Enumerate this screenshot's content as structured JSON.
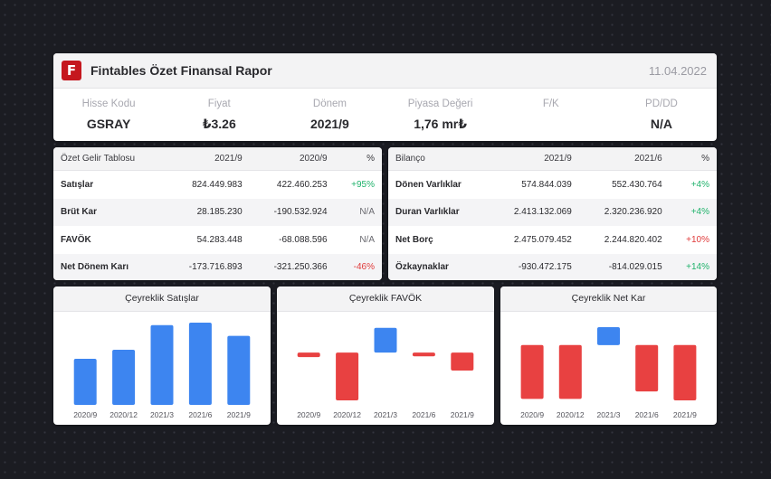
{
  "header": {
    "logo_letter": "F",
    "title": "Fintables Özet Finansal Rapor",
    "date": "11.04.2022",
    "metrics": [
      {
        "label": "Hisse Kodu",
        "value": "GSRAY"
      },
      {
        "label": "Fiyat",
        "value": "₺3.26"
      },
      {
        "label": "Dönem",
        "value": "2021/9"
      },
      {
        "label": "Piyasa Değeri",
        "value": "1,76 mr₺"
      },
      {
        "label": "F/K",
        "value": ""
      },
      {
        "label": "PD/DD",
        "value": "N/A"
      }
    ]
  },
  "income": {
    "headers": [
      "Özet Gelir Tablosu",
      "2021/9",
      "2020/9",
      "%"
    ],
    "rows": [
      {
        "name": "Satışlar",
        "a": "824.449.983",
        "b": "422.460.253",
        "pct": "+95%",
        "tone": "pos"
      },
      {
        "name": "Brüt Kar",
        "a": "28.185.230",
        "b": "-190.532.924",
        "pct": "N/A",
        "tone": "na"
      },
      {
        "name": "FAVÖK",
        "a": "54.283.448",
        "b": "-68.088.596",
        "pct": "N/A",
        "tone": "na"
      },
      {
        "name": "Net Dönem Karı",
        "a": "-173.716.893",
        "b": "-321.250.366",
        "pct": "-46%",
        "tone": "neg"
      }
    ]
  },
  "balance": {
    "headers": [
      "Bilanço",
      "2021/9",
      "2021/6",
      "%"
    ],
    "rows": [
      {
        "name": "Dönen Varlıklar",
        "a": "574.844.039",
        "b": "552.430.764",
        "pct": "+4%",
        "tone": "pos"
      },
      {
        "name": "Duran Varlıklar",
        "a": "2.413.132.069",
        "b": "2.320.236.920",
        "pct": "+4%",
        "tone": "pos"
      },
      {
        "name": "Net Borç",
        "a": "2.475.079.452",
        "b": "2.244.820.402",
        "pct": "+10%",
        "tone": "neg"
      },
      {
        "name": "Özkaynaklar",
        "a": "-930.472.175",
        "b": "-814.029.015",
        "pct": "+14%",
        "tone": "pos"
      }
    ]
  },
  "chart_data": [
    {
      "type": "bar",
      "title": "Çeyreklik Satışlar",
      "categories": [
        "2020/9",
        "2020/12",
        "2021/3",
        "2021/6",
        "2021/9"
      ],
      "values": [
        0.56,
        0.67,
        0.97,
        1.0,
        0.84
      ],
      "ylim": [
        0,
        1
      ],
      "colors": {
        "positive": "#3d85f0",
        "negative": "#e84141"
      }
    },
    {
      "type": "bar",
      "title": "Çeyreklik FAVÖK",
      "categories": [
        "2020/9",
        "2020/12",
        "2021/3",
        "2021/6",
        "2021/9"
      ],
      "values": [
        -0.06,
        -0.64,
        0.33,
        -0.05,
        -0.24
      ],
      "ylim": [
        -0.7,
        0.4
      ],
      "colors": {
        "positive": "#3d85f0",
        "negative": "#e84141"
      }
    },
    {
      "type": "bar",
      "title": "Çeyreklik Net Kar",
      "categories": [
        "2020/9",
        "2020/12",
        "2021/3",
        "2021/6",
        "2021/9"
      ],
      "values": [
        -0.72,
        -0.72,
        0.24,
        -0.62,
        -0.74
      ],
      "ylim": [
        -0.8,
        0.3
      ],
      "colors": {
        "positive": "#3d85f0",
        "negative": "#e84141"
      }
    }
  ]
}
